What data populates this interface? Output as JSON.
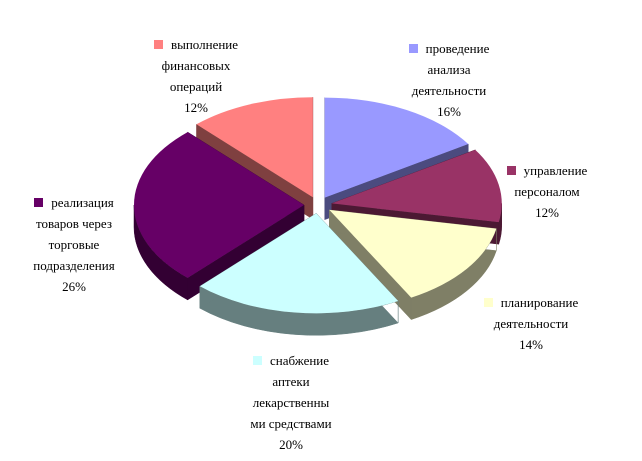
{
  "chart_data": {
    "type": "pie",
    "title": "",
    "slices": [
      {
        "label": [
          "проведение",
          "анализа",
          "деятельности"
        ],
        "percent": "16%",
        "value": 16,
        "color": "#9999ff",
        "side": "#4b4b7f"
      },
      {
        "label": [
          "управление",
          "персоналом"
        ],
        "percent": "12%",
        "value": 12,
        "color": "#993366",
        "side": "#4c1933"
      },
      {
        "label": [
          "планирование",
          "деятельности"
        ],
        "percent": "14%",
        "value": 14,
        "color": "#ffffcc",
        "side": "#7f7f66"
      },
      {
        "label": [
          "снабжение",
          "аптеки",
          "лекарственны",
          "ми средствами"
        ],
        "percent": "20%",
        "value": 20,
        "color": "#ccffff",
        "side": "#667f7f"
      },
      {
        "label": [
          "реализация",
          "товаров через",
          "торговые",
          "подразделения"
        ],
        "percent": "26%",
        "value": 26,
        "color": "#660066",
        "side": "#330033"
      },
      {
        "label": [
          "выполнение",
          "финансовых",
          "операций"
        ],
        "percent": "12%",
        "value": 12,
        "color": "#ff8080",
        "side": "#7f4040"
      }
    ]
  }
}
